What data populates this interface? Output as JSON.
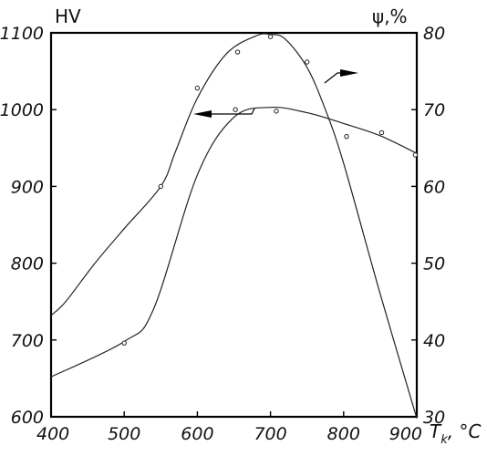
{
  "chart_data": {
    "type": "line",
    "xlabel": "T",
    "xlabel_subscript": "k",
    "xlabel_unit": ", °C",
    "ylabel_left": "HV",
    "ylabel_right": "ψ,%",
    "xlim": [
      400,
      900
    ],
    "ylim_left": [
      600,
      1100
    ],
    "ylim_right": [
      30,
      80
    ],
    "x_ticks": [
      400,
      500,
      600,
      700,
      800,
      900
    ],
    "y_left_ticks": [
      600,
      700,
      800,
      900,
      1000,
      1100
    ],
    "y_right_ticks": [
      30,
      40,
      50,
      60,
      70,
      80
    ],
    "grid": false,
    "series": [
      {
        "axis": "left",
        "arrow": "left",
        "markers": [
          {
            "x": 500,
            "y": 696
          },
          {
            "x": 652,
            "y": 1000
          },
          {
            "x": 708,
            "y": 998
          },
          {
            "x": 852,
            "y": 970
          },
          {
            "x": 898,
            "y": 941
          }
        ],
        "curve": [
          {
            "x": 400,
            "y": 652
          },
          {
            "x": 500,
            "y": 698
          },
          {
            "x": 540,
            "y": 740
          },
          {
            "x": 600,
            "y": 915
          },
          {
            "x": 650,
            "y": 990
          },
          {
            "x": 700,
            "y": 1003
          },
          {
            "x": 750,
            "y": 996
          },
          {
            "x": 800,
            "y": 982
          },
          {
            "x": 850,
            "y": 966
          },
          {
            "x": 900,
            "y": 943
          }
        ]
      },
      {
        "axis": "right",
        "arrow": "right",
        "markers": [
          {
            "x": 550,
            "y": 60
          },
          {
            "x": 600,
            "y": 72.8
          },
          {
            "x": 655,
            "y": 77.5
          },
          {
            "x": 700,
            "y": 79.5
          },
          {
            "x": 750,
            "y": 76.2
          },
          {
            "x": 804,
            "y": 66.5
          }
        ],
        "curve": [
          {
            "x": 400,
            "y": 43.2
          },
          {
            "x": 420,
            "y": 45
          },
          {
            "x": 460,
            "y": 50
          },
          {
            "x": 500,
            "y": 54.5
          },
          {
            "x": 550,
            "y": 60
          },
          {
            "x": 570,
            "y": 64.5
          },
          {
            "x": 600,
            "y": 71.5
          },
          {
            "x": 640,
            "y": 77.3
          },
          {
            "x": 680,
            "y": 79.6
          },
          {
            "x": 700,
            "y": 79.8
          },
          {
            "x": 720,
            "y": 79.2
          },
          {
            "x": 750,
            "y": 75.5
          },
          {
            "x": 775,
            "y": 70
          },
          {
            "x": 800,
            "y": 63
          },
          {
            "x": 850,
            "y": 46
          },
          {
            "x": 900,
            "y": 29.8
          }
        ]
      }
    ]
  }
}
